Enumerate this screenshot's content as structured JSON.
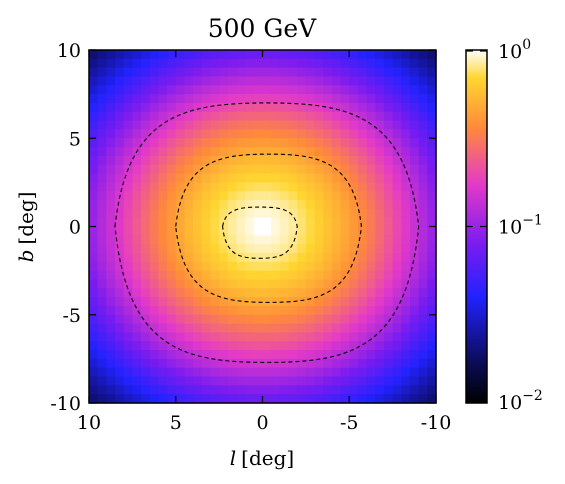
{
  "chart_data": {
    "type": "heatmap",
    "title": "500 GeV",
    "xlabel_var": "l",
    "xlabel_unit": "[deg]",
    "ylabel_var": "b",
    "ylabel_unit": "[deg]",
    "xlim": [
      10,
      -10
    ],
    "ylim": [
      -10,
      10
    ],
    "x_ticks": [
      {
        "value": 10,
        "label": "10"
      },
      {
        "value": 5,
        "label": "5"
      },
      {
        "value": 0,
        "label": "0"
      },
      {
        "value": -5,
        "label": "-5"
      },
      {
        "value": -10,
        "label": "-10"
      }
    ],
    "y_ticks": [
      {
        "value": 10,
        "label": "10"
      },
      {
        "value": 5,
        "label": "5"
      },
      {
        "value": 0,
        "label": "0"
      },
      {
        "value": -5,
        "label": "-5"
      },
      {
        "value": -10,
        "label": "-10"
      }
    ],
    "colorbar": {
      "scale": "log",
      "range": [
        0.01,
        1
      ],
      "colormap": "gnuplot2",
      "ticks": [
        {
          "value": 1,
          "base": "10",
          "exp": "0"
        },
        {
          "value": 0.1,
          "base": "10",
          "exp": "−1"
        },
        {
          "value": 0.01,
          "base": "10",
          "exp": "−2"
        }
      ]
    },
    "grid_bins": 40,
    "peak": {
      "l": 0,
      "b": 0,
      "value": 1
    },
    "contours": [
      {
        "level": "inner",
        "style": "dashed",
        "l_extent": [
          2.3,
          -2.0
        ],
        "b_extent": [
          -1.8,
          1.1
        ]
      },
      {
        "level": "middle",
        "style": "dashed",
        "l_extent": [
          5.0,
          -5.7
        ],
        "b_extent": [
          -4.3,
          4.1
        ]
      },
      {
        "level": "outer",
        "style": "dashed",
        "l_extent": [
          8.5,
          -9.0
        ],
        "b_extent": [
          -7.7,
          7.0
        ]
      }
    ]
  }
}
